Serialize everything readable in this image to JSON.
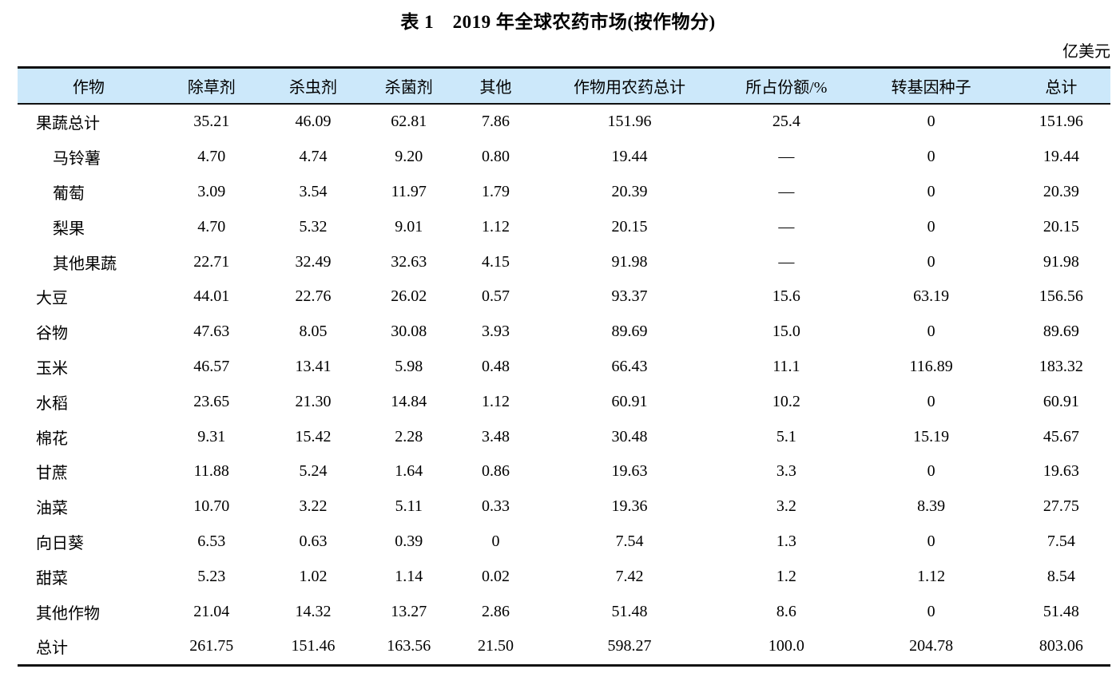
{
  "table": {
    "title": "表 1　2019 年全球农药市场(按作物分)",
    "unit": "亿美元",
    "columns": [
      "作物",
      "除草剂",
      "杀虫剂",
      "杀菌剂",
      "其他",
      "作物用农药总计",
      "所占份额/%",
      "转基因种子",
      "总计"
    ],
    "rows": [
      {
        "crop": "果蔬总计",
        "indent": false,
        "values": [
          "35.21",
          "46.09",
          "62.81",
          "7.86",
          "151.96",
          "25.4",
          "0",
          "151.96"
        ]
      },
      {
        "crop": "马铃薯",
        "indent": true,
        "values": [
          "4.70",
          "4.74",
          "9.20",
          "0.80",
          "19.44",
          "—",
          "0",
          "19.44"
        ]
      },
      {
        "crop": "葡萄",
        "indent": true,
        "values": [
          "3.09",
          "3.54",
          "11.97",
          "1.79",
          "20.39",
          "—",
          "0",
          "20.39"
        ]
      },
      {
        "crop": "梨果",
        "indent": true,
        "values": [
          "4.70",
          "5.32",
          "9.01",
          "1.12",
          "20.15",
          "—",
          "0",
          "20.15"
        ]
      },
      {
        "crop": "其他果蔬",
        "indent": true,
        "values": [
          "22.71",
          "32.49",
          "32.63",
          "4.15",
          "91.98",
          "—",
          "0",
          "91.98"
        ]
      },
      {
        "crop": "大豆",
        "indent": false,
        "values": [
          "44.01",
          "22.76",
          "26.02",
          "0.57",
          "93.37",
          "15.6",
          "63.19",
          "156.56"
        ]
      },
      {
        "crop": "谷物",
        "indent": false,
        "values": [
          "47.63",
          "8.05",
          "30.08",
          "3.93",
          "89.69",
          "15.0",
          "0",
          "89.69"
        ]
      },
      {
        "crop": "玉米",
        "indent": false,
        "values": [
          "46.57",
          "13.41",
          "5.98",
          "0.48",
          "66.43",
          "11.1",
          "116.89",
          "183.32"
        ]
      },
      {
        "crop": "水稻",
        "indent": false,
        "values": [
          "23.65",
          "21.30",
          "14.84",
          "1.12",
          "60.91",
          "10.2",
          "0",
          "60.91"
        ]
      },
      {
        "crop": "棉花",
        "indent": false,
        "values": [
          "9.31",
          "15.42",
          "2.28",
          "3.48",
          "30.48",
          "5.1",
          "15.19",
          "45.67"
        ]
      },
      {
        "crop": "甘蔗",
        "indent": false,
        "values": [
          "11.88",
          "5.24",
          "1.64",
          "0.86",
          "19.63",
          "3.3",
          "0",
          "19.63"
        ]
      },
      {
        "crop": "油菜",
        "indent": false,
        "values": [
          "10.70",
          "3.22",
          "5.11",
          "0.33",
          "19.36",
          "3.2",
          "8.39",
          "27.75"
        ]
      },
      {
        "crop": "向日葵",
        "indent": false,
        "values": [
          "6.53",
          "0.63",
          "0.39",
          "0",
          "7.54",
          "1.3",
          "0",
          "7.54"
        ]
      },
      {
        "crop": "甜菜",
        "indent": false,
        "values": [
          "5.23",
          "1.02",
          "1.14",
          "0.02",
          "7.42",
          "1.2",
          "1.12",
          "8.54"
        ]
      },
      {
        "crop": "其他作物",
        "indent": false,
        "values": [
          "21.04",
          "14.32",
          "13.27",
          "2.86",
          "51.48",
          "8.6",
          "0",
          "51.48"
        ]
      },
      {
        "crop": "总计",
        "indent": false,
        "values": [
          "261.75",
          "151.46",
          "163.56",
          "21.50",
          "598.27",
          "100.0",
          "204.78",
          "803.06"
        ]
      }
    ]
  },
  "colors": {
    "header_background": "#cce8fa",
    "rule": "#111111",
    "text": "#000000"
  }
}
